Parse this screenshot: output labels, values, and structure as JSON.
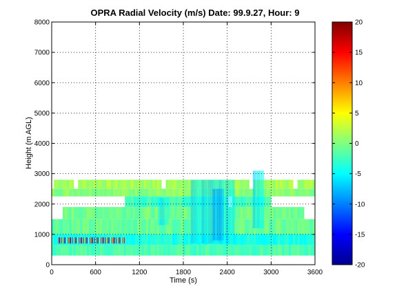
{
  "chart_data": {
    "type": "heatmap",
    "title": "OPRA Radial Velocity (m/s)  Date: 99.9.27, Hour: 9",
    "xlabel": "Time (s)",
    "ylabel": "Height (m AGL)",
    "xlim": [
      0,
      3600
    ],
    "ylim": [
      0,
      8000
    ],
    "x_ticks": [
      0,
      600,
      1200,
      1800,
      2400,
      3000,
      3600
    ],
    "y_ticks": [
      0,
      1000,
      2000,
      3000,
      4000,
      5000,
      6000,
      7000,
      8000
    ],
    "grid": true,
    "colormap": "jet",
    "colorbar": {
      "min": -20,
      "max": 20,
      "ticks": [
        -20,
        -15,
        -10,
        -5,
        0,
        5,
        10,
        15,
        20
      ]
    },
    "bands": [
      {
        "y0": 2500,
        "y1": 2800,
        "x0": 30,
        "x1": 3600,
        "value": 1.5,
        "gaps": [
          [
            300,
            360
          ],
          [
            1500,
            1560
          ],
          [
            2700,
            2760
          ],
          [
            3300,
            3360
          ]
        ]
      },
      {
        "y0": 2250,
        "y1": 2500,
        "x0": 0,
        "x1": 3600,
        "value": 0.5,
        "gaps": []
      },
      {
        "y0": 1900,
        "y1": 2250,
        "x0": 1000,
        "x1": 3000,
        "value": -2.5,
        "gaps": [
          [
            2400,
            2460
          ]
        ]
      },
      {
        "y0": 1500,
        "y1": 1900,
        "x0": 150,
        "x1": 3450,
        "value": -0.5,
        "gaps": []
      },
      {
        "y0": 1000,
        "y1": 1500,
        "x0": 0,
        "x1": 3600,
        "value": -1,
        "gaps": []
      },
      {
        "y0": 650,
        "y1": 1000,
        "x0": 0,
        "x1": 3600,
        "value": -4,
        "gaps": []
      },
      {
        "y0": 300,
        "y1": 650,
        "x0": 0,
        "x1": 3600,
        "value": -2,
        "gaps": []
      }
    ],
    "streaks": [
      {
        "x0": 1900,
        "x1": 2500,
        "y0": 700,
        "y1": 2800,
        "value": -6
      },
      {
        "x0": 2200,
        "x1": 2350,
        "y0": 800,
        "y1": 2500,
        "value": -8
      },
      {
        "x0": 2750,
        "x1": 2900,
        "y0": 1200,
        "y1": 3100,
        "value": -6
      },
      {
        "x0": 1450,
        "x1": 1600,
        "y0": 1300,
        "y1": 2200,
        "value": -5
      }
    ],
    "speckle_region": {
      "x0": 90,
      "x1": 1000,
      "y0": 700,
      "y1": 900,
      "values": [
        15,
        -18,
        10,
        -12,
        5,
        20,
        -15,
        3,
        -8,
        12
      ]
    }
  }
}
